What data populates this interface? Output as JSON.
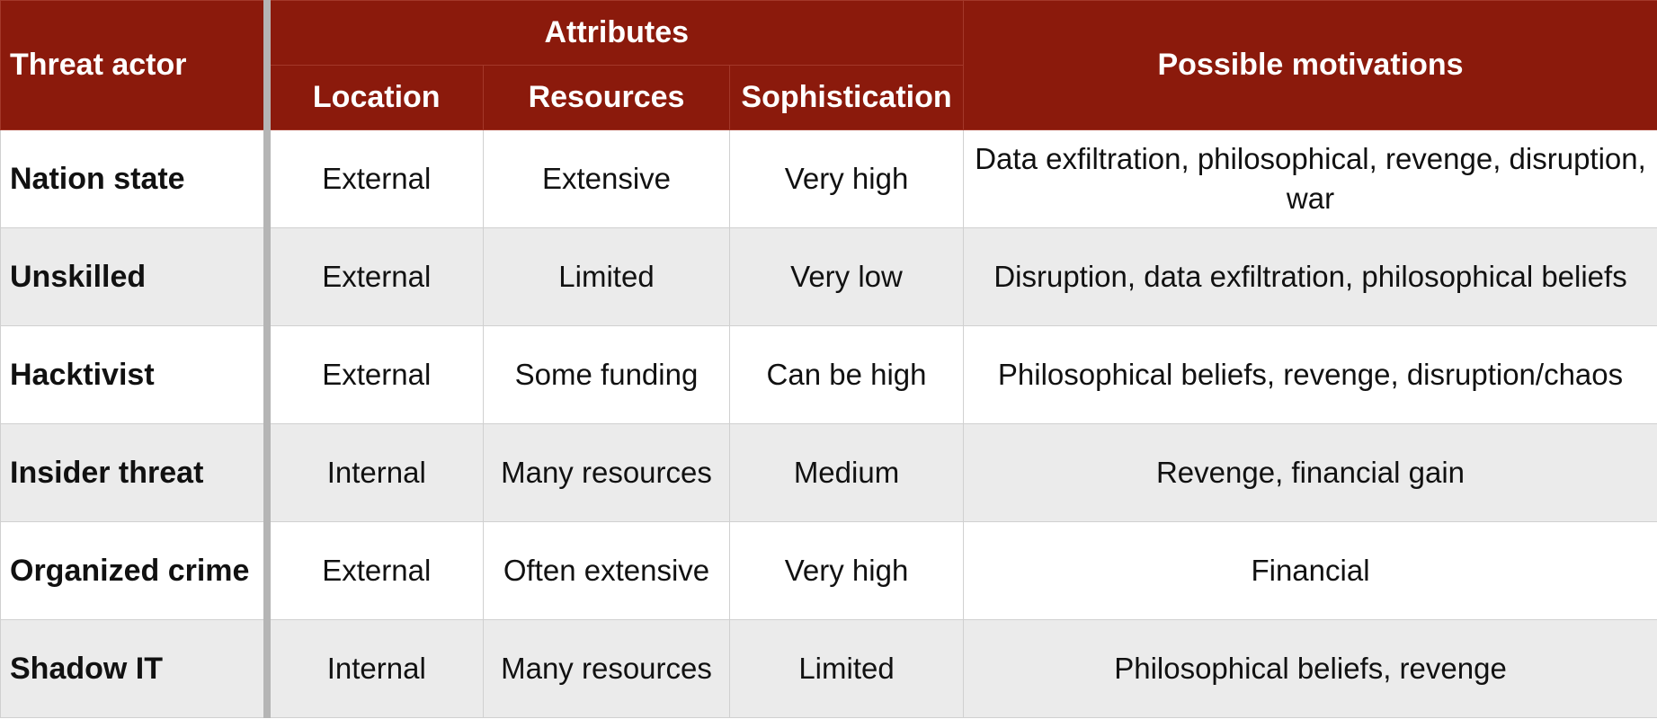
{
  "table": {
    "header": {
      "actor": "Threat actor",
      "attributes": "Attributes",
      "location": "Location",
      "resources": "Resources",
      "sophistication": "Sophistication",
      "motivations": "Possible motivations"
    },
    "rows": [
      {
        "actor": "Nation state",
        "location": "External",
        "resources": "Extensive",
        "sophistication": "Very high",
        "motivations": "Data exfiltration, philosophical, revenge, disruption, war"
      },
      {
        "actor": "Unskilled",
        "location": "External",
        "resources": "Limited",
        "sophistication": "Very low",
        "motivations": "Disruption, data exfiltration, philosophical beliefs"
      },
      {
        "actor": "Hacktivist",
        "location": "External",
        "resources": "Some funding",
        "sophistication": "Can be high",
        "motivations": "Philosophical beliefs, revenge, disruption/chaos"
      },
      {
        "actor": "Insider threat",
        "location": "Internal",
        "resources": "Many resources",
        "sophistication": "Medium",
        "motivations": "Revenge, financial gain"
      },
      {
        "actor": "Organized crime",
        "location": "External",
        "resources": "Often extensive",
        "sophistication": "Very high",
        "motivations": "Financial"
      },
      {
        "actor": "Shadow IT",
        "location": "Internal",
        "resources": "Many resources",
        "sophistication": "Limited",
        "motivations": "Philosophical beliefs, revenge"
      }
    ],
    "colors": {
      "header_bg": "#8b1a0c",
      "row_alt_bg": "#ebebeb",
      "divider": "#b5b5b5"
    }
  }
}
